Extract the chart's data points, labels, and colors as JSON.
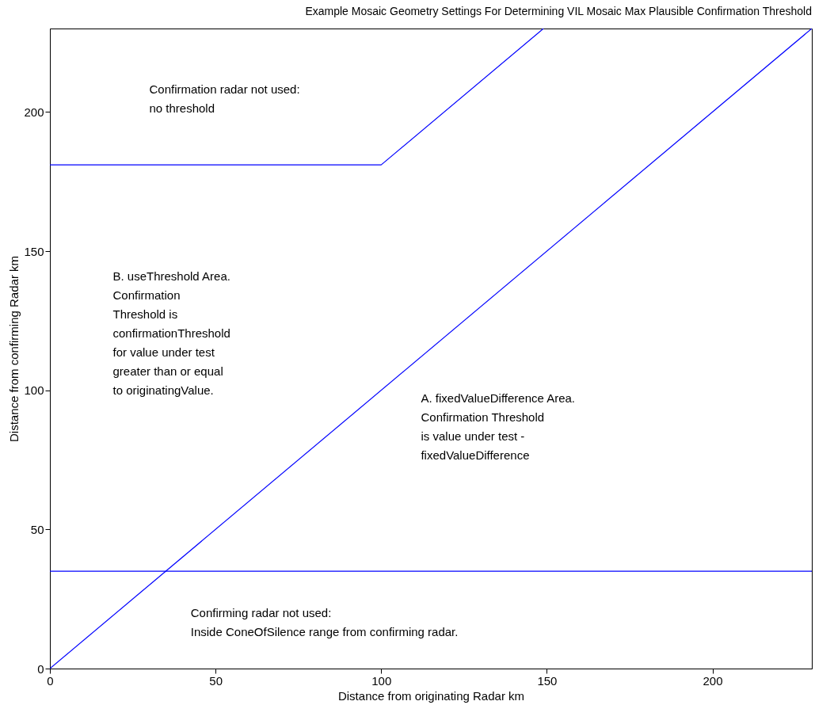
{
  "chart_data": {
    "type": "line",
    "title": "Example Mosaic Geometry Settings For Determining VIL Mosaic Max Plausible Confirmation Threshold",
    "xlabel": "Distance from originating Radar km",
    "ylabel": "Distance from confirming Radar km",
    "xlim": [
      0,
      230
    ],
    "ylim": [
      0,
      230
    ],
    "xticks": [
      0,
      50,
      100,
      150,
      200
    ],
    "yticks": [
      0,
      50,
      100,
      150,
      200
    ],
    "grid": false,
    "line_style": "solid",
    "series": [
      {
        "color": "#0000ff",
        "x": [
          0,
          230
        ],
        "values": [
          0,
          230
        ]
      },
      {
        "color": "#0000ff",
        "x": [
          0,
          100,
          149
        ],
        "values": [
          181,
          181,
          230
        ]
      },
      {
        "color": "#0000ff",
        "x": [
          0,
          230
        ],
        "values": [
          35,
          35
        ]
      }
    ],
    "annotations": [
      "Confirmation radar not used:\nno threshold",
      "B. useThreshold Area.\nConfirmation\nThreshold is\nconfirmationThreshold\nfor value under test\ngreater than or equal\n to originatingValue.",
      "A. fixedValueDifference Area.\nConfirmation Threshold\nis value under test -\nfixedValueDifference",
      "Confirming radar not used:\nInside ConeOfSilence range from confirming radar."
    ]
  }
}
